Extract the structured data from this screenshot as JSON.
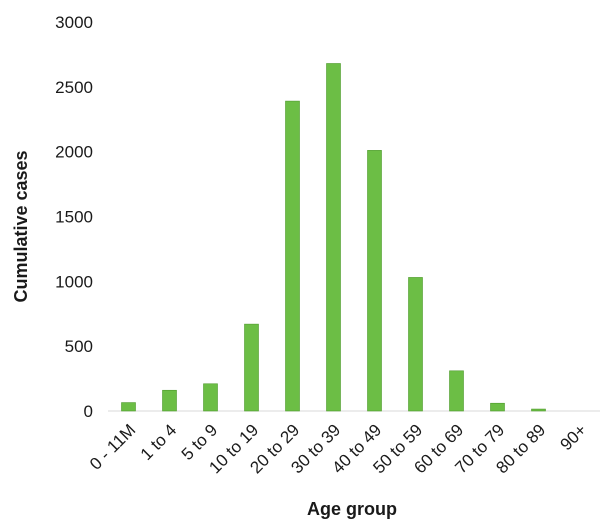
{
  "chart_data": {
    "type": "bar",
    "title": "",
    "xlabel": "Age group",
    "ylabel": "Cumulative cases",
    "categories": [
      "0 - 11M",
      "1 to 4",
      "5 to 9",
      "10 to 19",
      "20 to 29",
      "30 to 39",
      "40 to 49",
      "50 to 59",
      "60 to 69",
      "70 to 79",
      "80 to 89",
      "90+"
    ],
    "values": [
      65,
      160,
      210,
      670,
      2390,
      2680,
      2010,
      1030,
      310,
      60,
      15,
      0
    ],
    "ylim": [
      0,
      3000
    ],
    "yticks": [
      0,
      500,
      1000,
      1500,
      2000,
      2500,
      3000
    ],
    "grid": false,
    "legend": "none",
    "bar_color": "#6cbe45",
    "bar_edge_color": "#4e9a2c"
  }
}
